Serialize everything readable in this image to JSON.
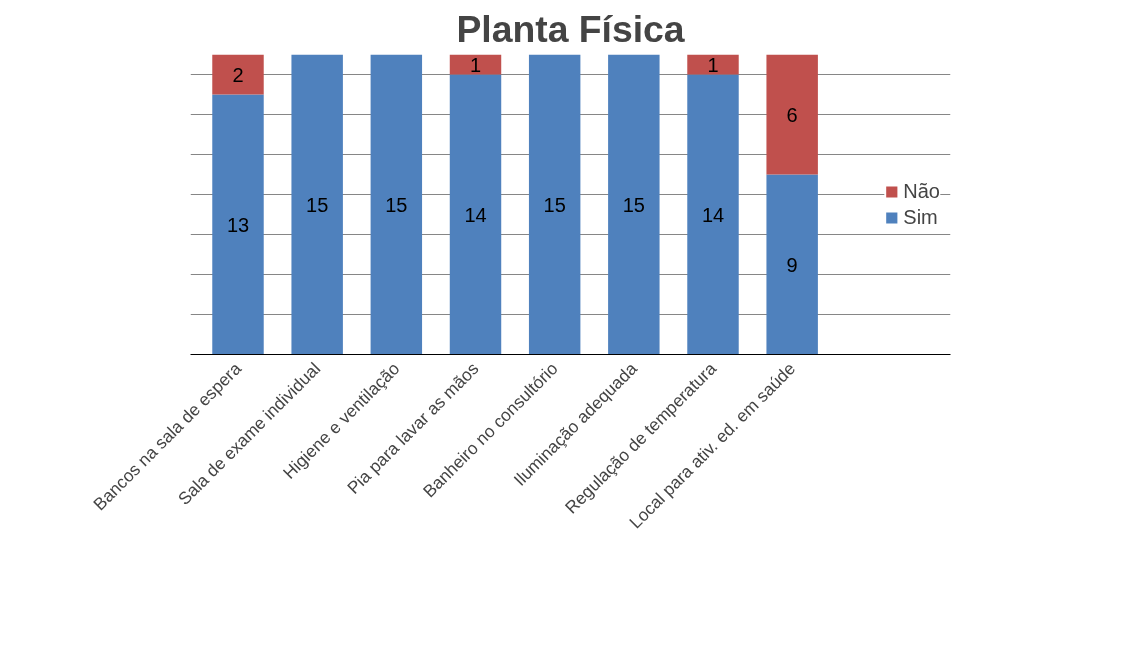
{
  "chart_data": {
    "type": "bar",
    "title": "Planta Física",
    "stacked": true,
    "categories": [
      "Bancos na sala de espera",
      "Sala de exame individual",
      "Higiene e ventilação",
      "Pia para lavar as mãos",
      "Banheiro no consultório",
      "Iluminação adequada",
      "Regulação de temperatura",
      "Local para ativ. ed. em saúde"
    ],
    "series": [
      {
        "name": "Sim",
        "color": "#4f81bd",
        "values": [
          13,
          15,
          15,
          14,
          15,
          15,
          14,
          9
        ]
      },
      {
        "name": "Não",
        "color": "#c0504d",
        "values": [
          2,
          null,
          null,
          1,
          null,
          null,
          1,
          6
        ]
      }
    ],
    "data_labels": true,
    "tick_labels": "x",
    "grid": "y",
    "legend": "right"
  }
}
